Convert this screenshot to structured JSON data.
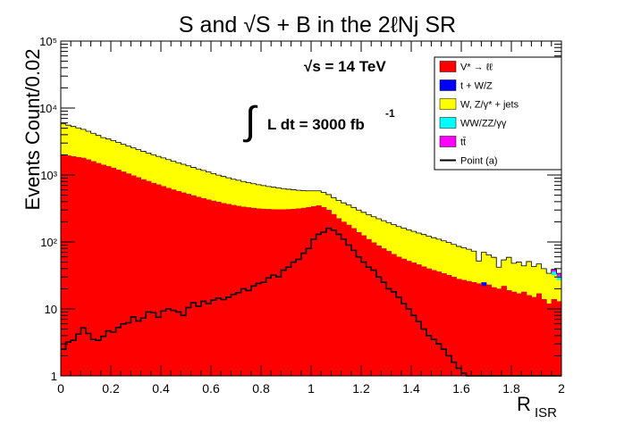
{
  "chart_data": {
    "type": "area",
    "title": "S and √S + B  in the 2ℓNj SR",
    "xlabel": "R",
    "xlabel_sub": "ISR",
    "ylabel": "Events Count/0.02",
    "xlim": [
      0,
      2
    ],
    "ylim": [
      1,
      100000
    ],
    "yscale": "log",
    "bin_width": 0.02,
    "x_ticks": [
      "0",
      "0.2",
      "0.4",
      "0.6",
      "0.8",
      "1",
      "1.2",
      "1.4",
      "1.6",
      "1.8",
      "2"
    ],
    "y_ticks": [
      "1",
      "10",
      "10²",
      "10³",
      "10⁴",
      "10⁵"
    ],
    "annotations": {
      "energy": "√s = 14 TeV",
      "lumi_integral": "∫",
      "lumi_text": "L dt = 3000 fb",
      "lumi_sup": "-1"
    },
    "legend_position": "top-right",
    "legend": [
      {
        "label": "V* → ℓℓ",
        "color": "#ff0000",
        "kind": "fill"
      },
      {
        "label": "t + W/Z",
        "color": "#0000ff",
        "kind": "fill"
      },
      {
        "label": "W, Z/γ* + jets",
        "color": "#ffff00",
        "kind": "fill"
      },
      {
        "label": "WW/ZZ/γγ",
        "color": "#00ffff",
        "kind": "fill"
      },
      {
        "label": "tt̄",
        "color": "#ff00ff",
        "kind": "fill"
      },
      {
        "label": "Point (a)",
        "color": "#000000",
        "kind": "line"
      }
    ],
    "series": [
      {
        "name": "V* → ℓℓ",
        "color": "#ff0000",
        "values": [
          2000,
          1950,
          1900,
          1850,
          1800,
          1700,
          1600,
          1500,
          1420,
          1350,
          1280,
          1200,
          1120,
          1050,
          980,
          920,
          860,
          810,
          760,
          720,
          680,
          640,
          605,
          575,
          545,
          520,
          495,
          470,
          450,
          430,
          412,
          396,
          380,
          368,
          355,
          345,
          336,
          328,
          322,
          316,
          312,
          309,
          307,
          306,
          306,
          308,
          311,
          316,
          322,
          330,
          340,
          350,
          330,
          300,
          260,
          225,
          200,
          180,
          160,
          140,
          125,
          110,
          98,
          88,
          80,
          73,
          66,
          60,
          56,
          52,
          49,
          46,
          43,
          40,
          38,
          36,
          34,
          32,
          30,
          28,
          27,
          26,
          25,
          24,
          22,
          23,
          21,
          20,
          22,
          19,
          18,
          17,
          18,
          16,
          15,
          17,
          14,
          12,
          14,
          13
        ]
      },
      {
        "name": "t + W/Z",
        "color": "#0000ff",
        "values": [
          0,
          0,
          0,
          0,
          0,
          0,
          0,
          0,
          0,
          0,
          0,
          0,
          0,
          0,
          0,
          0,
          0,
          0,
          0,
          0,
          0,
          0,
          0,
          0,
          0,
          0,
          0,
          0,
          0,
          0,
          0,
          0,
          0,
          0,
          0,
          0,
          0,
          0,
          0,
          0,
          0,
          0,
          0,
          0,
          0,
          0,
          0,
          0,
          0,
          0,
          0,
          0,
          0,
          0,
          0,
          0,
          0,
          0,
          0,
          0,
          0,
          0,
          0,
          0,
          0,
          0,
          0,
          0,
          0,
          0,
          0,
          0,
          0,
          0,
          0,
          0,
          0,
          0,
          0,
          0,
          0,
          0,
          0,
          0,
          3,
          0,
          0,
          0,
          0,
          0,
          0,
          0,
          0,
          0,
          0,
          0,
          0,
          0,
          0,
          0
        ]
      },
      {
        "name": "W, Z/γ* + jets",
        "color": "#ffff00",
        "values": [
          3800,
          3600,
          3400,
          3200,
          3000,
          2800,
          2600,
          2400,
          2200,
          2100,
          1980,
          1870,
          1750,
          1650,
          1560,
          1470,
          1390,
          1320,
          1250,
          1180,
          1120,
          1060,
          1000,
          950,
          900,
          850,
          800,
          760,
          720,
          680,
          640,
          600,
          570,
          540,
          510,
          490,
          465,
          440,
          420,
          400,
          382,
          365,
          350,
          335,
          320,
          305,
          290,
          275,
          262,
          250,
          240,
          230,
          220,
          210,
          200,
          192,
          184,
          176,
          168,
          160,
          152,
          146,
          140,
          134,
          128,
          122,
          116,
          110,
          105,
          100,
          95,
          90,
          86,
          82,
          78,
          74,
          70,
          66,
          62,
          58,
          55,
          52,
          48,
          28,
          45,
          41,
          38,
          22,
          32,
          40,
          30,
          33,
          26,
          35,
          28,
          30,
          26,
          22,
          18,
          14
        ]
      },
      {
        "name": "WW/ZZ/γγ",
        "color": "#00ffff",
        "values": [
          0,
          0,
          0,
          0,
          0,
          0,
          0,
          0,
          0,
          0,
          0,
          0,
          0,
          0,
          0,
          0,
          0,
          0,
          0,
          0,
          0,
          0,
          0,
          0,
          0,
          0,
          0,
          0,
          0,
          0,
          0,
          0,
          0,
          0,
          0,
          0,
          0,
          0,
          0,
          0,
          0,
          0,
          0,
          0,
          0,
          0,
          0,
          0,
          0,
          0,
          0,
          0,
          0,
          0,
          0,
          0,
          0,
          0,
          0,
          0,
          0,
          0,
          0,
          0,
          0,
          0,
          0,
          0,
          0,
          0,
          0,
          0,
          0,
          0,
          0,
          0,
          0,
          0,
          0,
          0,
          0,
          0,
          0,
          0,
          0,
          0,
          0,
          0,
          0,
          0,
          0,
          0,
          0,
          0,
          0,
          0,
          0,
          0,
          4,
          4
        ]
      },
      {
        "name": "tt̄",
        "color": "#ff00ff",
        "values": [
          0,
          0,
          0,
          0,
          0,
          0,
          0,
          0,
          0,
          0,
          0,
          0,
          0,
          0,
          0,
          0,
          0,
          0,
          0,
          0,
          0,
          0,
          0,
          0,
          0,
          0,
          0,
          0,
          0,
          0,
          0,
          0,
          0,
          0,
          0,
          0,
          0,
          0,
          0,
          0,
          0,
          0,
          0,
          0,
          0,
          0,
          0,
          0,
          0,
          0,
          0,
          0,
          0,
          0,
          0,
          0,
          0,
          0,
          0,
          0,
          0,
          0,
          0,
          0,
          0,
          0,
          0,
          0,
          0,
          0,
          0,
          0,
          0,
          0,
          0,
          0,
          0,
          0,
          0,
          0,
          0,
          0,
          0,
          0,
          0,
          0,
          0,
          0,
          0,
          0,
          0,
          0,
          0,
          0,
          0,
          0,
          0,
          0,
          3,
          3
        ]
      },
      {
        "name": "Point (a)",
        "color": "#000000",
        "line": true,
        "values": [
          2.5,
          3.2,
          3.4,
          4.2,
          5.2,
          4.3,
          3.5,
          3.4,
          3.9,
          4.7,
          4.5,
          5.3,
          6,
          6.2,
          7.6,
          6.6,
          7.3,
          9,
          8.8,
          7.5,
          9.3,
          10,
          9.5,
          9,
          8,
          10.5,
          12.4,
          11,
          13,
          12,
          13.5,
          14.5,
          13.8,
          15,
          16.5,
          17.5,
          20,
          18.8,
          22,
          24,
          25,
          29,
          32,
          30,
          38,
          42,
          50,
          55,
          68,
          80,
          110,
          130,
          140,
          160,
          150,
          130,
          110,
          90,
          75,
          60,
          50,
          42,
          38,
          30,
          25,
          20,
          18,
          15,
          12,
          10,
          8,
          6.5,
          5,
          4,
          3.5,
          3,
          2.5,
          2,
          1.6,
          1.3,
          1.1,
          1,
          1,
          1,
          1,
          1,
          1,
          1,
          1,
          1,
          1,
          1,
          1,
          1,
          1,
          1,
          1,
          1,
          1,
          1
        ]
      }
    ]
  }
}
